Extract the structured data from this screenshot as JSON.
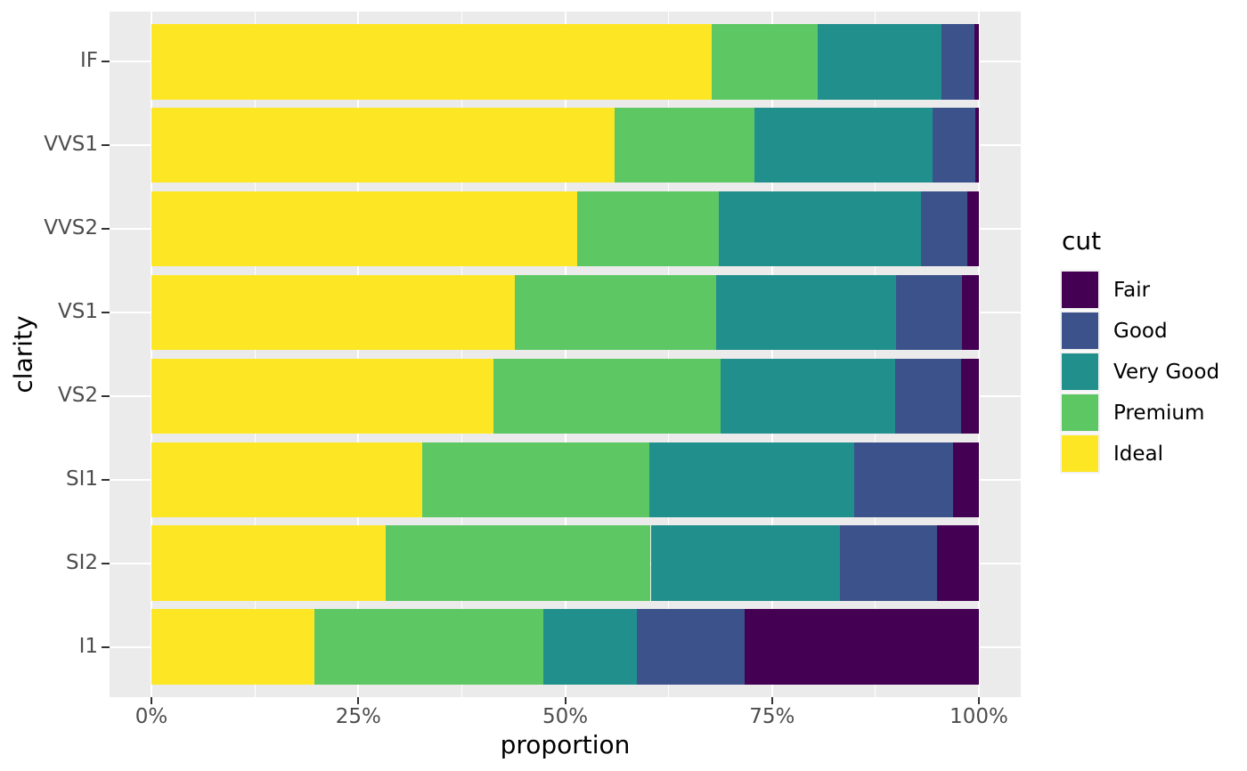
{
  "chart_data": {
    "type": "bar",
    "variant": "horizontal-stacked-proportion",
    "title": "",
    "xlabel": "proportion",
    "ylabel": "clarity",
    "categories": [
      "IF",
      "VVS1",
      "VVS2",
      "VS1",
      "VS2",
      "SI1",
      "SI2",
      "I1"
    ],
    "x_ticks": [
      {
        "label": "0%",
        "value": 0
      },
      {
        "label": "25%",
        "value": 0.25
      },
      {
        "label": "50%",
        "value": 0.5
      },
      {
        "label": "75%",
        "value": 0.75
      },
      {
        "label": "100%",
        "value": 1
      }
    ],
    "x_minor_values": [
      0.125,
      0.375,
      0.625,
      0.875
    ],
    "xlim": [
      0,
      1
    ],
    "grid": "white major and minor gridlines on gray panel",
    "stack_order_left_to_right": [
      "Ideal",
      "Premium",
      "Very Good",
      "Good",
      "Fair"
    ],
    "series": [
      {
        "name": "Ideal",
        "color": "#FDE725",
        "values": [
          0.6771,
          0.5601,
          0.5144,
          0.4392,
          0.4137,
          0.3277,
          0.2826,
          0.197
        ]
      },
      {
        "name": "Premium",
        "color": "#5DC863",
        "values": [
          0.1285,
          0.1685,
          0.1717,
          0.2434,
          0.2739,
          0.2736,
          0.3208,
          0.2767
        ]
      },
      {
        "name": "Very Good",
        "color": "#21908C",
        "values": [
          0.1497,
          0.2159,
          0.2438,
          0.2172,
          0.2114,
          0.248,
          0.2284,
          0.1134
        ]
      },
      {
        "name": "Good",
        "color": "#3B528B",
        "values": [
          0.0397,
          0.0509,
          0.0565,
          0.0793,
          0.0798,
          0.1194,
          0.1176,
          0.1296
        ]
      },
      {
        "name": "Fair",
        "color": "#440154",
        "values": [
          0.005,
          0.0047,
          0.0136,
          0.0208,
          0.0213,
          0.0312,
          0.0507,
          0.2834
        ]
      }
    ],
    "legend": {
      "title": "cut",
      "position": "right",
      "items_top_to_bottom": [
        {
          "label": "Fair",
          "color": "#440154"
        },
        {
          "label": "Good",
          "color": "#3B528B"
        },
        {
          "label": "Very Good",
          "color": "#21908C"
        },
        {
          "label": "Premium",
          "color": "#5DC863"
        },
        {
          "label": "Ideal",
          "color": "#FDE725"
        }
      ]
    },
    "colors": {
      "panel_background": "#EBEBEB",
      "gridline": "#FFFFFF",
      "axis_text": "#4D4D4D",
      "axis_title_text": "#000000",
      "tick_mark": "#333333",
      "page_background": "#FFFFFF"
    }
  }
}
